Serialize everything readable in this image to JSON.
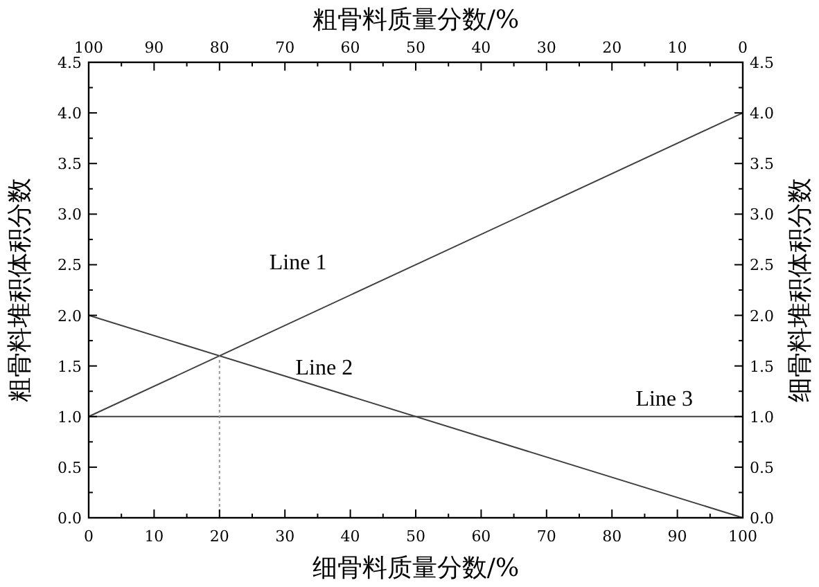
{
  "chart_data": {
    "type": "line",
    "xlabel": "细骨料质量分数/%",
    "x2label": "粗骨料质量分数/%",
    "ylabel": "粗骨料堆积体积分数",
    "y2label": "细骨料堆积体积分数",
    "xlim": [
      0,
      100
    ],
    "xticks": [
      0,
      10,
      20,
      30,
      40,
      50,
      60,
      70,
      80,
      90,
      100
    ],
    "x2lim": [
      100,
      0
    ],
    "x2ticks": [
      100,
      90,
      80,
      70,
      60,
      50,
      40,
      30,
      20,
      10,
      0
    ],
    "ylim": [
      0,
      4.5
    ],
    "yticks": [
      {
        "value": 0,
        "label": "0.0"
      },
      {
        "value": 0.5,
        "label": "0.5"
      },
      {
        "value": 1,
        "label": "1.0"
      },
      {
        "value": 1.5,
        "label": "1.5"
      },
      {
        "value": 2,
        "label": "2.0"
      },
      {
        "value": 2.5,
        "label": "2.5"
      },
      {
        "value": 3,
        "label": "3.0"
      },
      {
        "value": 3.5,
        "label": "3.5"
      },
      {
        "value": 4,
        "label": "4.0"
      },
      {
        "value": 4.5,
        "label": "4.5"
      }
    ],
    "y2lim": [
      0,
      4.5
    ],
    "y2ticks": [
      {
        "value": 0,
        "label": "0.0"
      },
      {
        "value": 0.5,
        "label": "0.5"
      },
      {
        "value": 1,
        "label": "1.0"
      },
      {
        "value": 1.5,
        "label": "1.5"
      },
      {
        "value": 2,
        "label": "2.0"
      },
      {
        "value": 2.5,
        "label": "2.5"
      },
      {
        "value": 3,
        "label": "3.0"
      },
      {
        "value": 3.5,
        "label": "3.5"
      },
      {
        "value": 4,
        "label": "4.0"
      },
      {
        "value": 4.5,
        "label": "4.5"
      }
    ],
    "grid": false,
    "marker": "none",
    "series": [
      {
        "name": "Line 1",
        "color": "#404040",
        "x": [
          0,
          100
        ],
        "values": [
          1,
          4
        ],
        "line_style": "solid"
      },
      {
        "name": "Line 2",
        "color": "#404040",
        "x": [
          0,
          100
        ],
        "values": [
          2,
          0
        ],
        "line_style": "solid"
      },
      {
        "name": "Line 3",
        "color": "#404040",
        "x": [
          0,
          100
        ],
        "values": [
          1,
          1
        ],
        "line_style": "solid"
      },
      {
        "color": "#999999",
        "x": [
          20,
          20
        ],
        "values": [
          0,
          1.6
        ],
        "line_style": "dotted"
      }
    ]
  }
}
